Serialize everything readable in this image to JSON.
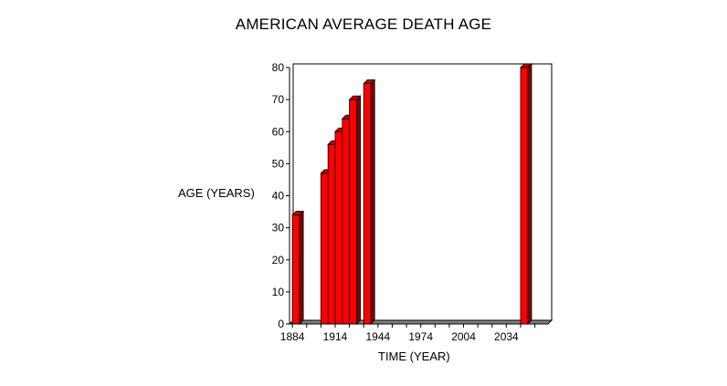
{
  "chart_data": {
    "type": "bar",
    "title": "AMERICAN AVERAGE DEATH AGE",
    "xlabel": "TIME (YEAR)",
    "ylabel": "AGE (YEARS)",
    "x": [
      1884,
      1904,
      1909,
      1914,
      1919,
      1924,
      1934,
      2044
    ],
    "values": [
      34,
      47,
      56,
      60,
      64,
      70,
      75,
      80
    ],
    "ylim": [
      0,
      80
    ],
    "xlim": [
      1882,
      2060
    ],
    "yticks": [
      "0",
      "10",
      "20",
      "30",
      "40",
      "50",
      "60",
      "70",
      "80"
    ],
    "xticks": [
      {
        "value": 1884,
        "label": "1884"
      },
      {
        "value": 1914,
        "label": "1914"
      },
      {
        "value": 1944,
        "label": "1944"
      },
      {
        "value": 1974,
        "label": "1974"
      },
      {
        "value": 2004,
        "label": "2004"
      },
      {
        "value": 2034,
        "label": "2034"
      }
    ],
    "grid": false,
    "legend": "none",
    "bar_color": "#ff0000",
    "bar_top_color": "#c00000",
    "bar_side_color": "#800000"
  }
}
